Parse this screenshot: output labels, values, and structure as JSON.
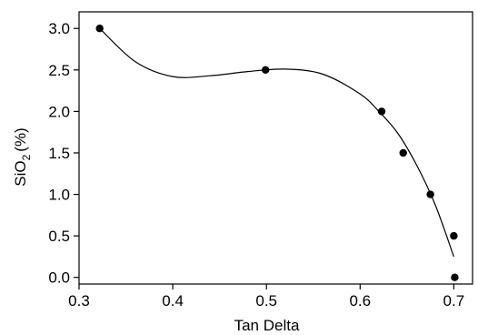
{
  "chart_data": {
    "type": "scatter",
    "title": "",
    "xlabel": "Tan Delta",
    "ylabel_main": "SiO",
    "ylabel_sub": "2",
    "ylabel_tail": "(%)",
    "xlim": [
      0.3,
      0.72
    ],
    "ylim": [
      -0.08,
      3.2
    ],
    "x_ticks": [
      0.3,
      0.4,
      0.5,
      0.6,
      0.7
    ],
    "x_tick_labels": [
      "0.3",
      "0.4",
      "0.5",
      "0.6",
      "0.7"
    ],
    "y_ticks": [
      0.0,
      0.5,
      1.0,
      1.5,
      2.0,
      2.5,
      3.0
    ],
    "y_tick_labels": [
      "0.0",
      "0.5",
      "1.0",
      "1.5",
      "2.0",
      "2.5",
      "3.0"
    ],
    "grid": false,
    "legend": "none",
    "series": [
      {
        "points": [
          {
            "x": 0.322,
            "y": 3.0
          },
          {
            "x": 0.499,
            "y": 2.5
          },
          {
            "x": 0.623,
            "y": 2.0
          },
          {
            "x": 0.646,
            "y": 1.5
          },
          {
            "x": 0.675,
            "y": 1.0
          },
          {
            "x": 0.7,
            "y": 0.5
          },
          {
            "x": 0.701,
            "y": 0.0
          }
        ]
      }
    ],
    "fit_curve": {
      "points": [
        {
          "x": 0.322,
          "y": 3.0
        },
        {
          "x": 0.36,
          "y": 2.6
        },
        {
          "x": 0.4,
          "y": 2.42
        },
        {
          "x": 0.44,
          "y": 2.43
        },
        {
          "x": 0.48,
          "y": 2.48
        },
        {
          "x": 0.52,
          "y": 2.51
        },
        {
          "x": 0.56,
          "y": 2.45
        },
        {
          "x": 0.6,
          "y": 2.21
        },
        {
          "x": 0.62,
          "y": 2.0
        },
        {
          "x": 0.64,
          "y": 1.74
        },
        {
          "x": 0.66,
          "y": 1.36
        },
        {
          "x": 0.68,
          "y": 0.88
        },
        {
          "x": 0.7,
          "y": 0.25
        }
      ]
    }
  }
}
